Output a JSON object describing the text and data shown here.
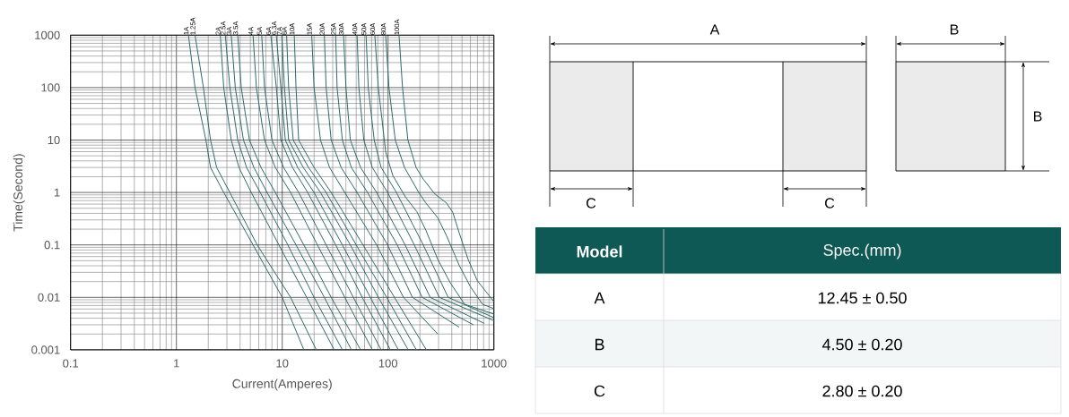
{
  "chart_data": [
    {
      "type": "line",
      "xlabel": "Current(Amperes)",
      "ylabel": "Time(Second)",
      "log": "xy",
      "grid": true,
      "xlim": [
        0.1,
        1000
      ],
      "ylim": [
        0.001,
        1000
      ],
      "xticks": [
        0.1,
        1,
        10,
        100,
        1000
      ],
      "yticks": [
        0.001,
        0.01,
        0.1,
        1,
        10,
        100,
        1000
      ],
      "series": [
        {
          "name": "1A",
          "color": "#2f6b6b",
          "x": [
            1.3,
            1.5,
            1.9,
            2.1,
            2.8,
            5.3,
            10,
            16
          ],
          "values": [
            1000,
            100,
            10,
            3,
            1,
            0.1,
            0.01,
            0.001
          ]
        },
        {
          "name": "1.25A",
          "color": "#2f6b6b",
          "x": [
            1.5,
            1.8,
            2.1,
            2.4,
            3.2,
            5.8,
            12,
            21
          ],
          "values": [
            1000,
            100,
            10,
            3,
            1,
            0.1,
            0.01,
            0.001
          ]
        },
        {
          "name": "2A",
          "color": "#2f6b6b",
          "x": [
            2.6,
            2.8,
            3.3,
            3.9,
            5.1,
            9.3,
            17,
            31
          ],
          "values": [
            1000,
            100,
            10,
            3,
            1,
            0.1,
            0.01,
            0.001
          ]
        },
        {
          "name": "2.5A",
          "color": "#2f6b6b",
          "x": [
            2.9,
            3.2,
            3.8,
            4.6,
            6.2,
            11.3,
            20,
            37
          ],
          "values": [
            1000,
            100,
            10,
            3,
            1,
            0.1,
            0.01,
            0.001
          ]
        },
        {
          "name": "3A",
          "color": "#2f6b6b",
          "x": [
            3.3,
            3.6,
            4.3,
            5.4,
            7.2,
            13.5,
            25,
            45
          ],
          "values": [
            1000,
            100,
            10,
            3,
            1,
            0.1,
            0.01,
            0.001
          ]
        },
        {
          "name": "3.5A",
          "color": "#2f6b6b",
          "x": [
            3.8,
            4.1,
            4.9,
            6.3,
            8.6,
            16,
            29,
            55
          ],
          "values": [
            1000,
            100,
            10,
            3,
            1,
            0.1,
            0.01,
            0.001
          ]
        },
        {
          "name": "4A",
          "color": "#2f6b6b",
          "x": [
            5.3,
            5.7,
            6.8,
            8.6,
            12,
            21.5,
            39,
            71
          ],
          "values": [
            1000,
            100,
            10,
            3,
            1,
            0.1,
            0.01,
            0.001
          ]
        },
        {
          "name": "5A",
          "color": "#2f6b6b",
          "x": [
            6.4,
            6.8,
            8.0,
            10.3,
            14.3,
            26,
            47,
            86
          ],
          "values": [
            1000,
            100,
            10,
            3,
            1,
            0.1,
            0.01,
            0.001
          ]
        },
        {
          "name": "6A",
          "color": "#2f6b6b",
          "x": [
            7.8,
            8.8,
            9.7,
            12.5,
            17.4,
            32,
            57,
            105
          ],
          "values": [
            1000,
            100,
            10,
            3,
            1,
            0.1,
            0.01,
            0.001
          ]
        },
        {
          "name": "6.3A",
          "color": "#2f6b6b",
          "x": [
            8.8,
            9.7,
            10.7,
            14,
            20,
            37,
            68,
            125
          ],
          "values": [
            1000,
            100,
            10,
            3,
            1,
            0.1,
            0.01,
            0.001
          ]
        },
        {
          "name": "7A",
          "color": "#2f6b6b",
          "x": [
            9.9,
            10.5,
            11.5,
            15.8,
            23,
            44,
            81,
            155
          ],
          "values": [
            1000,
            100,
            10,
            3,
            1,
            0.1,
            0.01,
            0.001
          ]
        },
        {
          "name": "8A",
          "color": "#2f6b6b",
          "x": [
            11,
            11.5,
            12.7,
            17.7,
            26,
            50,
            97,
            185
          ],
          "values": [
            1000,
            100,
            10,
            3,
            1,
            0.1,
            0.01,
            0.001
          ]
        },
        {
          "name": "10A",
          "color": "#2f6b6b",
          "x": [
            13,
            13.5,
            14.3,
            20,
            29,
            58,
            115,
            230
          ],
          "values": [
            1000,
            100,
            10,
            3,
            1,
            0.1,
            0.01,
            0.001
          ]
        },
        {
          "name": "15A",
          "color": "#2f6b6b",
          "x": [
            19,
            20,
            23,
            28,
            39,
            78,
            140,
            295
          ],
          "values": [
            1000,
            100,
            10,
            3,
            1,
            0.1,
            0.01,
            0.002
          ]
        },
        {
          "name": "20A",
          "color": "#2f6b6b",
          "x": [
            25,
            26,
            29,
            36,
            51,
            99,
            170,
            470
          ],
          "values": [
            1000,
            100,
            10,
            3,
            1,
            0.1,
            0.01,
            0.0027
          ]
        },
        {
          "name": "25A",
          "color": "#2f6b6b",
          "x": [
            32,
            33,
            37,
            45,
            64,
            122,
            210,
            640
          ],
          "values": [
            1000,
            100,
            10,
            3,
            1,
            0.1,
            0.01,
            0.003
          ]
        },
        {
          "name": "30A",
          "color": "#2f6b6b",
          "x": [
            38,
            40,
            44,
            55,
            78,
            145,
            250,
            810
          ],
          "values": [
            1000,
            100,
            10,
            3,
            1,
            0.1,
            0.01,
            0.0032
          ]
        },
        {
          "name": "40A",
          "color": "#2f6b6b",
          "x": [
            51,
            53,
            59,
            71,
            99,
            177,
            305,
            1000
          ],
          "values": [
            1000,
            100,
            10,
            3,
            1,
            0.1,
            0.01,
            0.0036
          ]
        },
        {
          "name": "50A",
          "color": "#2f6b6b",
          "x": [
            62,
            65,
            74,
            86,
            120,
            215,
            370,
            1000
          ],
          "values": [
            1000,
            100,
            10,
            3,
            1,
            0.1,
            0.01,
            0.0041
          ]
        },
        {
          "name": "60A",
          "color": "#2f6b6b",
          "x": [
            75,
            81,
            95,
            111,
            146,
            187,
            228,
            295,
            387,
            528,
            1000
          ],
          "values": [
            1000,
            100,
            5.9,
            2.1,
            0.82,
            0.43,
            0.19,
            0.053,
            0.019,
            0.0074,
            0.0048
          ]
        },
        {
          "name": "80A",
          "color": "#2f6b6b",
          "x": [
            95,
            102,
            117,
            143,
            195,
            228,
            295,
            357,
            470,
            600,
            780,
            1000
          ],
          "values": [
            1000,
            100,
            10,
            3,
            1,
            0.63,
            0.33,
            0.15,
            0.041,
            0.016,
            0.0074,
            0.0061
          ]
        },
        {
          "name": "100A",
          "color": "#2f6b6b",
          "x": [
            127,
            137,
            154,
            184,
            215,
            278,
            357,
            409,
            470,
            571,
            695,
            1000
          ],
          "values": [
            1000,
            100,
            10,
            3,
            1.8,
            0.93,
            0.63,
            0.42,
            0.17,
            0.053,
            0.021,
            0.0083
          ]
        }
      ]
    },
    {
      "type": "other",
      "annotations": [
        "A",
        "B",
        "B",
        "C",
        "C",
        "Model",
        "Spec.(mm)",
        "A",
        "12.45 ± 0.50",
        "B",
        "4.50 ± 0.20",
        "C",
        "2.80 ± 0.20"
      ]
    }
  ]
}
